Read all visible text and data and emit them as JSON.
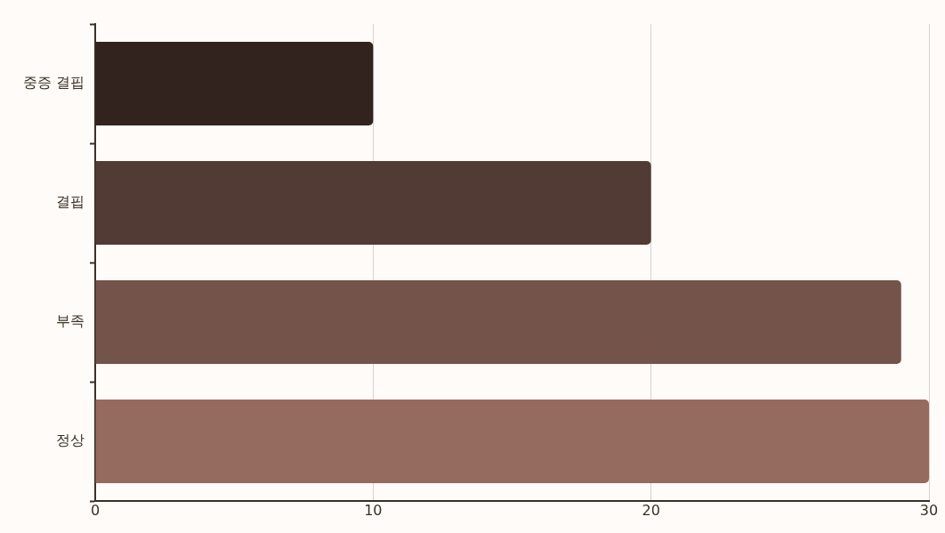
{
  "chart_data": {
    "type": "bar",
    "orientation": "horizontal",
    "categories": [
      "중증 결핍",
      "결핍",
      "부족",
      "정상"
    ],
    "values": [
      10,
      20,
      29,
      30
    ],
    "colors": [
      "#33231f",
      "#523b34",
      "#74544a",
      "#966b5f"
    ],
    "xlim": [
      0,
      30
    ],
    "xticks": [
      0,
      10,
      20,
      30
    ],
    "grid": "x"
  }
}
